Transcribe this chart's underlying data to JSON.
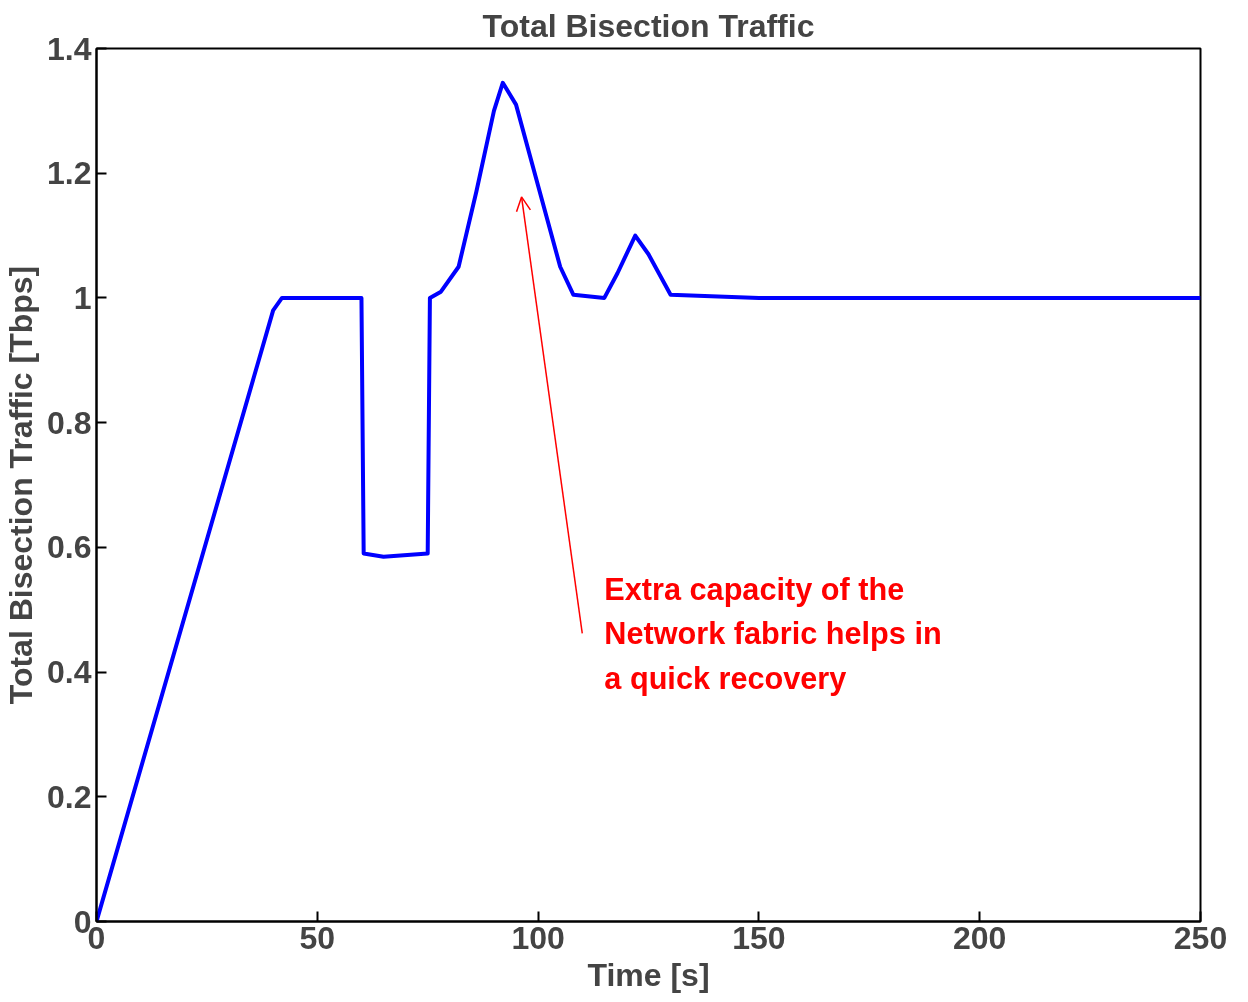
{
  "chart_data": {
    "type": "line",
    "title": "Total Bisection Traffic",
    "xlabel": "Time [s]",
    "ylabel": "Total Bisection Traffic [Tbps]",
    "x": [
      0,
      40,
      42,
      50,
      60,
      60.5,
      65,
      75,
      75.5,
      78,
      82,
      86,
      90,
      92,
      95,
      100,
      105,
      108,
      115,
      118,
      122,
      125,
      130,
      150,
      200,
      250
    ],
    "series": [
      {
        "color": "#0000ff",
        "values": [
          0,
          0.98,
          1.0,
          1.0,
          1.0,
          0.59,
          0.585,
          0.59,
          1.0,
          1.01,
          1.05,
          1.17,
          1.3,
          1.345,
          1.31,
          1.18,
          1.05,
          1.005,
          1.0,
          1.04,
          1.1,
          1.07,
          1.005,
          1.0,
          1.0,
          1.0
        ]
      }
    ],
    "xlim": [
      0,
      250
    ],
    "ylim": [
      0,
      1.4
    ],
    "xticks": [
      0,
      50,
      100,
      150,
      200,
      250
    ],
    "yticks": [
      0,
      0.2,
      0.4,
      0.6,
      0.8,
      1,
      1.2,
      1.4
    ],
    "grid": false,
    "annotations": [
      "Extra capacity of the\nNetwork fabric helps in\na quick recovery"
    ]
  }
}
